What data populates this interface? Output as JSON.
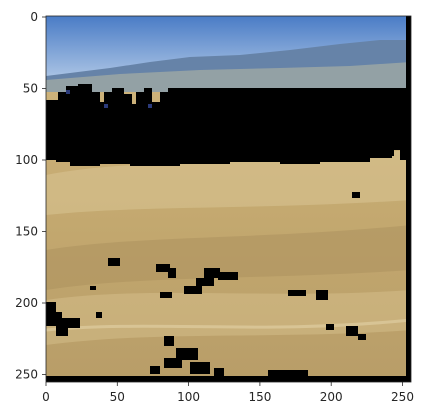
{
  "figure": {
    "kind": "image-plot",
    "image_subject": "landscape photo: blue sky with distant blue mountains, black masked band across the middle, dry golden grassland with scattered black speckles below",
    "colors": {
      "sky_top": "#4b7fc8",
      "sky_bottom": "#a9c3e3",
      "mountain": "#5d7a9e",
      "mask": "#000000",
      "grass_light": "#d8c28a",
      "grass_mid": "#b99d63",
      "grass_dark": "#8a7346"
    },
    "x_axis": {
      "ticks": [
        "0",
        "50",
        "100",
        "150",
        "200",
        "250"
      ]
    },
    "y_axis": {
      "ticks": [
        "0",
        "50",
        "100",
        "150",
        "200",
        "250"
      ]
    }
  }
}
